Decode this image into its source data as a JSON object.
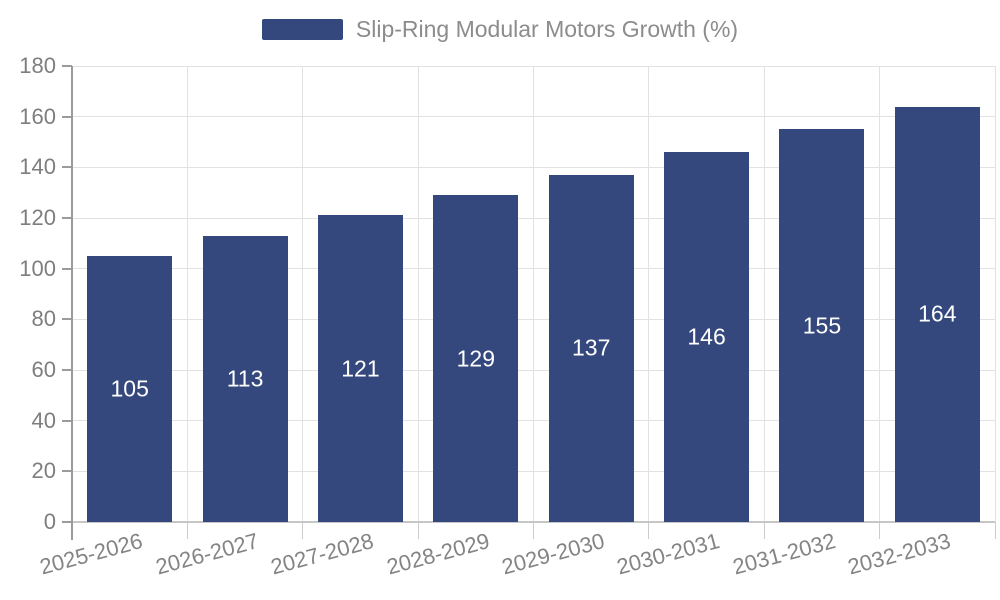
{
  "legend": {
    "label": "Slip-Ring Modular Motors Growth (%)"
  },
  "colors": {
    "bar": "#35487e",
    "bar_label": "#ffffff",
    "legend_text": "#8c8c8c",
    "tick_text": "#7e7e7e",
    "grid": "#e2e2e2",
    "axis_y": "#9b9b9b",
    "axis_x": "#c6c6c6"
  },
  "chart_data": {
    "type": "bar",
    "title": "Slip-Ring Modular Motors Growth (%)",
    "categories": [
      "2025-2026",
      "2026-2027",
      "2027-2028",
      "2028-2029",
      "2029-2030",
      "2030-2031",
      "2031-2032",
      "2032-2033"
    ],
    "values": [
      105,
      113,
      121,
      129,
      137,
      146,
      155,
      164
    ],
    "xlabel": "",
    "ylabel": "",
    "ylim": [
      0,
      180
    ],
    "ytick_step": 20,
    "yticks": [
      0,
      20,
      40,
      60,
      80,
      100,
      120,
      140,
      160,
      180
    ],
    "grid": true,
    "legend_position": "top",
    "bar_value_labels": true,
    "x_label_rotation_deg": 15
  }
}
